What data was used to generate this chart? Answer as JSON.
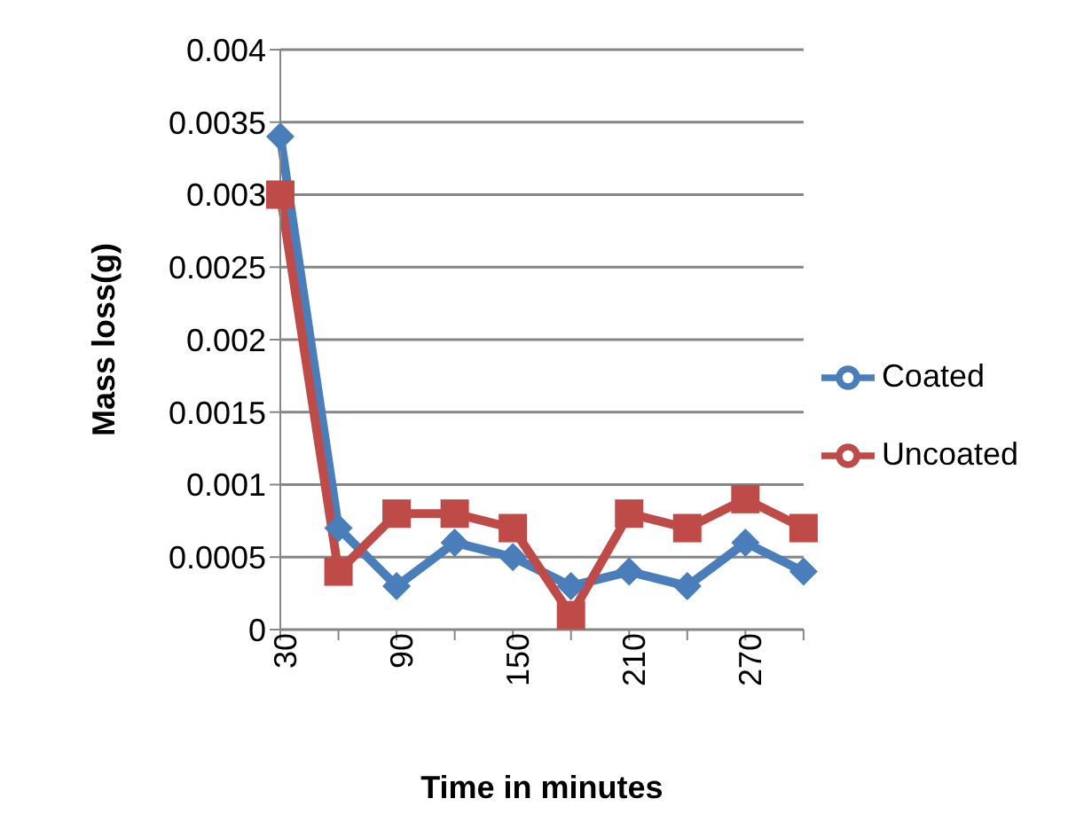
{
  "chart_data": {
    "type": "line",
    "xlabel": "Time in minutes",
    "ylabel": "Mass loss(g)",
    "categories": [
      "30",
      null,
      "90",
      null,
      "150",
      null,
      "210",
      null,
      "270",
      null
    ],
    "series": [
      {
        "name": "Coated",
        "color": "#4a7ebb",
        "marker": "diamond",
        "values": [
          0.0034,
          0.0007,
          0.0003,
          0.0006,
          0.0005,
          0.0003,
          0.0004,
          0.0003,
          0.0006,
          0.0004
        ]
      },
      {
        "name": "Uncoated",
        "color": "#be4b48",
        "marker": "square",
        "values": [
          0.003,
          0.0004,
          0.0008,
          0.0008,
          0.0007,
          0.0001,
          0.0008,
          0.0007,
          0.0009,
          0.0007
        ]
      }
    ],
    "ylim": [
      0,
      0.004
    ],
    "yticks": [
      0,
      0.0005,
      0.001,
      0.0015,
      0.002,
      0.0025,
      0.003,
      0.0035,
      0.004
    ],
    "grid": "y",
    "legend": "right"
  }
}
